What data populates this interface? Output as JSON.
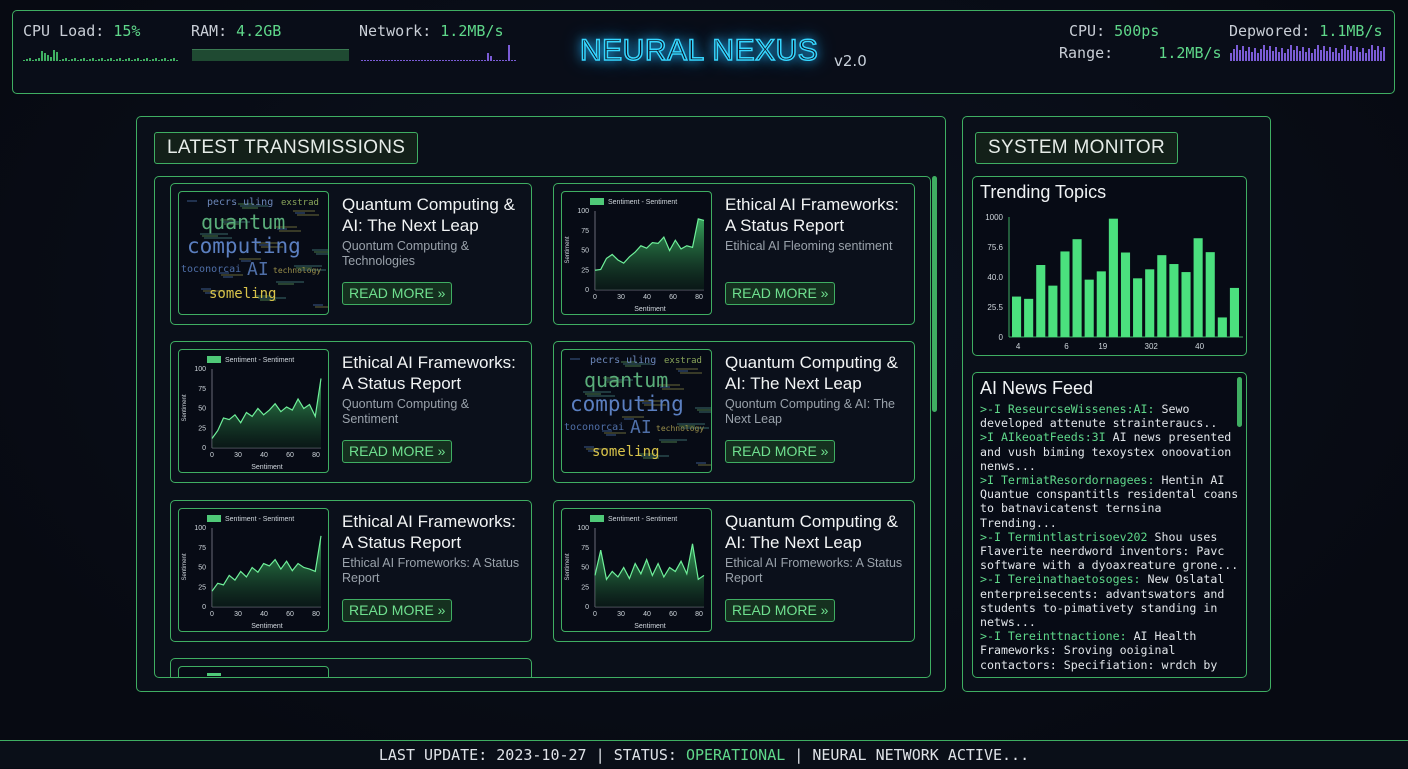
{
  "header": {
    "cpu_load": {
      "label": "CPU Load:",
      "value": "15%"
    },
    "ram": {
      "label": "RAM:",
      "value": "4.2GB"
    },
    "network": {
      "label": "Network:",
      "value": "1.2MB/s"
    },
    "title": "NEURAL NEXUS",
    "version": "v2.0",
    "cpu": {
      "label": "CPU:",
      "value": "500ps"
    },
    "depwored": {
      "label": "Depwored:",
      "value": "1.1MB/s"
    },
    "range": {
      "label": "Range:",
      "value": "1.2MB/s"
    },
    "colors": {
      "accent": "#3fae62",
      "value": "#5fd88a",
      "title_glow": "#35d6ff",
      "network": "#7b5cd6"
    }
  },
  "main": {
    "section_title": "LATEST TRANSMISSIONS",
    "cards": [
      {
        "type": "wordcloud",
        "title": "Quantum Computing & AI: The Next Leap",
        "subtitle": "Quontum Computing & Technologies",
        "button": "READ MORE »"
      },
      {
        "type": "chart",
        "title": "Ethical AI Frameworks: A Status Report",
        "subtitle": "Etihical AI Fleoming sentiment",
        "button": "READ MORE »",
        "series": [
          25,
          26,
          40,
          45,
          38,
          34,
          42,
          48,
          56,
          53,
          60,
          59,
          67,
          50,
          63,
          52,
          56,
          54,
          90,
          88
        ]
      },
      {
        "type": "chart",
        "title": "Ethical AI Frameworks: A Status Report",
        "subtitle": "Quontum Computing & Sentiment",
        "button": "READ MORE »",
        "series": [
          12,
          22,
          38,
          36,
          42,
          32,
          45,
          40,
          50,
          42,
          48,
          56,
          46,
          52,
          48,
          62,
          50,
          55,
          40,
          88
        ]
      },
      {
        "type": "wordcloud",
        "title": "Quantum Computing & AI: The Next Leap",
        "subtitle": "Quontum Computing & AI: The Next Leap",
        "button": "READ MORE »"
      },
      {
        "type": "chart",
        "title": "Ethical AI Frameworks: A Status Report",
        "subtitle": "Ethical AI Fromeworks: A Status Report",
        "button": "READ MORE »",
        "series": [
          20,
          30,
          28,
          40,
          34,
          45,
          38,
          50,
          44,
          55,
          52,
          60,
          48,
          58,
          46,
          55,
          50,
          48,
          45,
          90
        ]
      },
      {
        "type": "chart",
        "title": "Quantum Computing & AI: The Next Leap",
        "subtitle": "Ethical AI Fromeworks: A Status Report",
        "button": "READ MORE »",
        "series": [
          40,
          72,
          35,
          45,
          38,
          50,
          36,
          55,
          42,
          60,
          40,
          55,
          38,
          50,
          45,
          58,
          42,
          80,
          35,
          40
        ]
      }
    ],
    "chart_legend": "Sentiment - Sentiment",
    "chart_ylabel": "Sentiment",
    "chart_xlabel": "Sentiment",
    "chart_yticks": [
      "100",
      "75",
      "50",
      "25",
      "0"
    ],
    "chart_xticks": [
      "0",
      "30",
      "40",
      "60",
      "80"
    ],
    "wordcloud": {
      "big": [
        "quantum",
        "computing",
        "AI",
        "someling"
      ],
      "small": [
        "pecrs uling",
        "toconorcai",
        "technology",
        "exstrad"
      ]
    }
  },
  "sidebar": {
    "section_title": "SYSTEM MONITOR",
    "trending": {
      "title": "Trending Topics"
    },
    "news": {
      "title": "AI News Feed",
      "items": [
        {
          "source": ">-I ResеurcseWissenes:AI:",
          "text": "Sewo developed attenute strainteraucs.."
        },
        {
          "source": ">I AIkeoatFeeds:3I",
          "text": "AI news presented and vush biming texoystex onoovation nenws..."
        },
        {
          "source": ">I TermiatResordornagees:",
          "text": "Hentin AI Quantue conspantitls residental coans to batnavicatenst ternsina Trending..."
        },
        {
          "source": ">-I Termintlastrisoev202",
          "text": "Shou uses Flaverite neerdword inventors: Pavc software with a dyoaxreature grone..."
        },
        {
          "source": ">-I Tereinathaetosoges:",
          "text": "New Oslatal enterpreisecents: advantswators and students to-pimativety standing in netws..."
        },
        {
          "source": ">-I Tereinttnactione:",
          "text": "AI Health Frameworks: Sroving ooiginal contactors: Specifiation: wrdch by"
        }
      ]
    }
  },
  "chart_data": {
    "type": "bar",
    "title": "Trending Topics",
    "ytick_labels": [
      "1000",
      "75.6",
      "40.0",
      "25.5",
      "0"
    ],
    "xtick_labels": [
      "4",
      "6",
      "19",
      "302",
      "40"
    ],
    "ylim": [
      0,
      1000
    ],
    "values": [
      337,
      318,
      600,
      428,
      713,
      815,
      478,
      547,
      986,
      704,
      489,
      564,
      682,
      608,
      541,
      823,
      707,
      163,
      409
    ],
    "color": "#4be07e"
  },
  "footer": {
    "last_update_label": "LAST UPDATE:",
    "last_update": "2023-10-27",
    "status_label": "STATUS:",
    "status": "OPERATIONAL",
    "tail": "NEURAL NETWORK ACTIVE..."
  }
}
